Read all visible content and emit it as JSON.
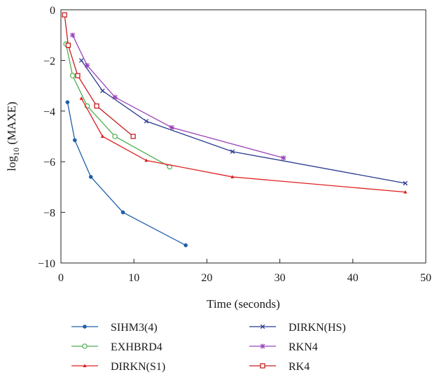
{
  "chart_data": {
    "type": "line",
    "title": "",
    "xlabel": "Time (seconds)",
    "ylabel_base": "log",
    "ylabel_sub": "10",
    "ylabel_rest": " (MAXE)",
    "xlim": [
      0,
      50
    ],
    "ylim": [
      -10,
      0
    ],
    "xticks": [
      0,
      10,
      20,
      30,
      40,
      50
    ],
    "yticks": [
      0,
      -2,
      -4,
      -6,
      -8,
      -10
    ],
    "xtick_labels": [
      "0",
      "10",
      "20",
      "30",
      "40",
      "50"
    ],
    "ytick_labels": [
      "0",
      "−2",
      "−4",
      "−6",
      "−8",
      "−10"
    ],
    "grid": false,
    "legend_position": "bottom",
    "series": [
      {
        "name": "SIHM3(4)",
        "color": "#1f5fa8",
        "marker": "dot",
        "x": [
          0.9,
          1.9,
          4.1,
          8.5,
          17.1
        ],
        "y": [
          -3.65,
          -5.15,
          -6.6,
          -8.0,
          -9.3
        ]
      },
      {
        "name": "EXHBRD4",
        "color": "#4caf50",
        "marker": "circle",
        "x": [
          0.7,
          1.6,
          3.6,
          7.4,
          14.9
        ],
        "y": [
          -1.35,
          -2.6,
          -3.8,
          -5.0,
          -6.2
        ]
      },
      {
        "name": "DIRKN(S1)",
        "color": "#e02020",
        "marker": "triangle",
        "x": [
          2.8,
          5.7,
          11.7,
          23.5,
          47.2
        ],
        "y": [
          -3.5,
          -5.0,
          -5.95,
          -6.6,
          -7.2
        ]
      },
      {
        "name": "DIRKN(HS)",
        "color": "#2a3a8f",
        "marker": "x",
        "x": [
          2.8,
          5.7,
          11.7,
          23.5,
          47.2
        ],
        "y": [
          -2.0,
          -3.2,
          -4.4,
          -5.6,
          -6.85
        ]
      },
      {
        "name": "RKN4",
        "color": "#9a44b8",
        "marker": "asterisk",
        "x": [
          1.6,
          3.6,
          7.4,
          15.2,
          30.5
        ],
        "y": [
          -1.0,
          -2.2,
          -3.45,
          -4.65,
          -5.85
        ]
      },
      {
        "name": "RK4",
        "color": "#c81e1e",
        "marker": "square",
        "x": [
          0.5,
          1.0,
          2.3,
          4.9,
          9.9
        ],
        "y": [
          -0.2,
          -1.4,
          -2.6,
          -3.8,
          -5.0
        ]
      }
    ]
  }
}
